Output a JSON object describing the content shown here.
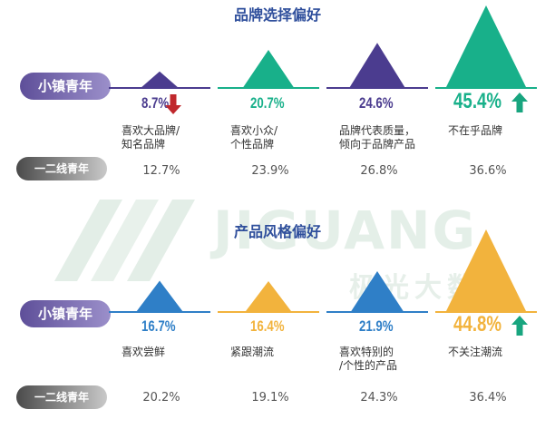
{
  "chart_data": [
    {
      "type": "bar",
      "title": "品牌选择偏好",
      "series": [
        {
          "name": "小镇青年",
          "values": [
            8.7,
            20.7,
            24.6,
            45.4
          ]
        },
        {
          "name": "一二线青年",
          "values": [
            12.7,
            23.9,
            26.8,
            36.6
          ]
        }
      ],
      "categories": [
        "喜欢大品牌/\n知名品牌",
        "喜欢小众/\n个性品牌",
        "品牌代表质量，\n倾向于品牌产品",
        "不在乎品牌"
      ],
      "display_values": [
        "8.7%",
        "20.7%",
        "24.6%",
        "45.4%"
      ],
      "tier_labels": [
        "12.7%",
        "23.9%",
        "26.8%",
        "36.6%"
      ],
      "indicators": [
        "down",
        "none",
        "none",
        "up"
      ],
      "colors": [
        "#4b3c8f",
        "#18b08a",
        "#4b3c8f",
        "#18b08a"
      ]
    },
    {
      "type": "bar",
      "title": "产品风格偏好",
      "series": [
        {
          "name": "小镇青年",
          "values": [
            16.7,
            16.4,
            21.9,
            44.8
          ]
        },
        {
          "name": "一二线青年",
          "values": [
            20.2,
            19.1,
            24.3,
            36.4
          ]
        }
      ],
      "categories": [
        "喜欢尝鲜",
        "紧跟潮流",
        "喜欢特别的\n/个性的产品",
        "不关注潮流"
      ],
      "display_values": [
        "16.7%",
        "16.4%",
        "21.9%",
        "44.8%"
      ],
      "tier_labels": [
        "20.2%",
        "19.1%",
        "24.3%",
        "36.4%"
      ],
      "indicators": [
        "none",
        "none",
        "none",
        "up"
      ],
      "colors": [
        "#2f7fc7",
        "#f2b33d",
        "#2f7fc7",
        "#f2b33d"
      ]
    }
  ],
  "groups": {
    "small_town": "小镇青年",
    "tier12": "一二线青年"
  },
  "watermark": {
    "brand": "JIGUANG",
    "sub": "极光大数据"
  },
  "style": {
    "up_arrow_color": "#18a57f",
    "down_arrow_color": "#c0282d"
  }
}
